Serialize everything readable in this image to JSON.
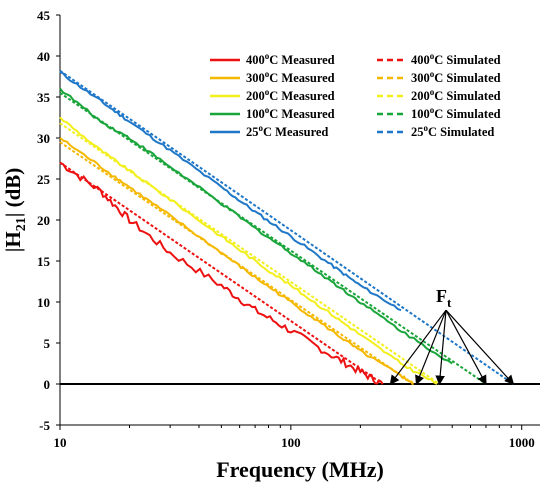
{
  "chart_data": {
    "type": "line",
    "xlabel": "Frequency (MHz)",
    "ylabel": "|H21| (dB)",
    "ylabel_main": "|H",
    "ylabel_sub": "21",
    "ylabel_rest": "| (dB)",
    "x_scale": "log",
    "xlim": [
      10,
      1200
    ],
    "ylim": [
      -5,
      45
    ],
    "xticks": [
      10,
      100,
      1000
    ],
    "xtick_labels": [
      "10",
      "100",
      "1000"
    ],
    "yticks": [
      -5,
      0,
      5,
      10,
      15,
      20,
      25,
      30,
      35,
      40,
      45
    ],
    "ytick_labels": [
      "-5",
      "0",
      "5",
      "10",
      "15",
      "20",
      "25",
      "30",
      "35",
      "40",
      "45"
    ],
    "grid": false,
    "legend_placement": "top-right",
    "series": [
      {
        "name": "400oC Measured",
        "kind": "measured",
        "color": "#ee1111",
        "x": [
          10,
          15,
          20,
          30,
          50,
          70,
          100,
          150,
          200,
          250
        ],
        "y": [
          27,
          23.5,
          20,
          16,
          12,
          9,
          6.5,
          3.5,
          1.5,
          0
        ]
      },
      {
        "name": "300oC Measured",
        "kind": "measured",
        "color": "#f5b800",
        "x": [
          10,
          15,
          20,
          30,
          50,
          70,
          100,
          150,
          200,
          300,
          340
        ],
        "y": [
          30,
          26.5,
          24,
          20.5,
          16,
          13,
          10,
          6.5,
          4,
          1,
          0
        ]
      },
      {
        "name": "200oC Measured",
        "kind": "measured",
        "color": "#f2ef1c",
        "x": [
          10,
          15,
          20,
          30,
          50,
          70,
          100,
          150,
          200,
          300,
          430
        ],
        "y": [
          32.5,
          28.5,
          26,
          22.5,
          18,
          15,
          12,
          8.5,
          6,
          2.5,
          0
        ]
      },
      {
        "name": "100oC Measured",
        "kind": "measured",
        "color": "#1aa53a",
        "x": [
          10,
          15,
          20,
          30,
          50,
          70,
          100,
          150,
          200,
          300,
          500
        ],
        "y": [
          36,
          32,
          30,
          26.5,
          22,
          19,
          16,
          12.5,
          10,
          6.5,
          2.5
        ]
      },
      {
        "name": "25oC Measured",
        "kind": "measured",
        "color": "#1f77c8",
        "x": [
          10,
          15,
          20,
          30,
          50,
          70,
          100,
          150,
          200,
          300
        ],
        "y": [
          38,
          34.5,
          32,
          28.5,
          24,
          21,
          18,
          14.5,
          12,
          9
        ]
      },
      {
        "name": "400oC Simulated",
        "kind": "simulated",
        "color": "#ee1111",
        "x": [
          10,
          250
        ],
        "y": [
          27,
          0
        ]
      },
      {
        "name": "300oC Simulated",
        "kind": "simulated",
        "color": "#f5b800",
        "x": [
          10,
          340
        ],
        "y": [
          29.5,
          0
        ]
      },
      {
        "name": "200oC Simulated",
        "kind": "simulated",
        "color": "#f2ef1c",
        "x": [
          10,
          440
        ],
        "y": [
          31.8,
          0
        ]
      },
      {
        "name": "100oC Simulated",
        "kind": "simulated",
        "color": "#1aa53a",
        "x": [
          10,
          700
        ],
        "y": [
          35.5,
          0
        ]
      },
      {
        "name": "25oC Simulated",
        "kind": "simulated",
        "color": "#1f77c8",
        "x": [
          10,
          920
        ],
        "y": [
          38.2,
          0
        ]
      }
    ],
    "annotation": {
      "label_main": "F",
      "label_sub": "t",
      "origin": {
        "x": 470,
        "y": 9
      },
      "targets": [
        {
          "x": 270,
          "y": 0
        },
        {
          "x": 350,
          "y": 0
        },
        {
          "x": 440,
          "y": 0
        },
        {
          "x": 700,
          "y": 0
        },
        {
          "x": 920,
          "y": 0
        }
      ]
    }
  }
}
